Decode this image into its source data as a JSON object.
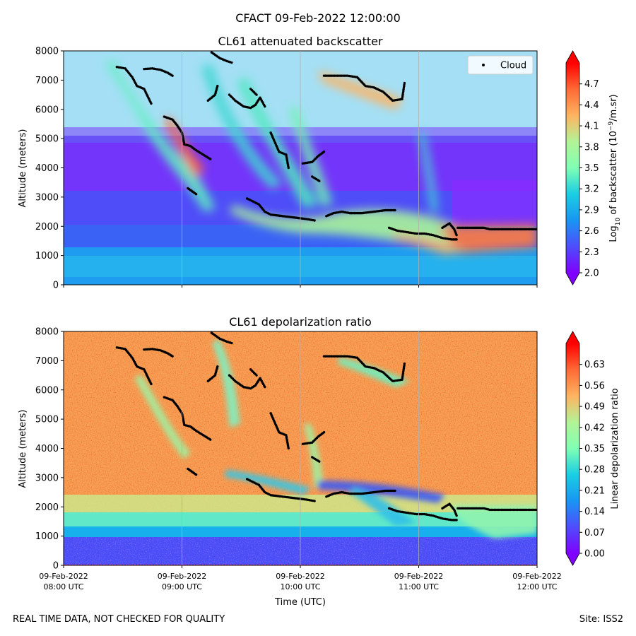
{
  "figure": {
    "suptitle": "CFACT 09-Feb-2022 12:00:00",
    "footer_left": "REAL TIME DATA, NOT CHECKED FOR QUALITY",
    "footer_right": "Site: ISS2",
    "xlabel": "Time (UTC)"
  },
  "chart_data": [
    {
      "type": "heatmap",
      "title": "CL61 attenuated backscatter",
      "ylabel": "Altitude (meters)",
      "ylim": [
        0,
        8000
      ],
      "yticks": [
        0,
        1000,
        2000,
        3000,
        4000,
        5000,
        6000,
        7000,
        8000
      ],
      "xlim": [
        "08:00",
        "12:00"
      ],
      "colorbar": {
        "label_main": "Log",
        "label_sub": "10",
        "label_rest": " of backscatter (10",
        "label_sup": "−9",
        "label_end": "/m.sr)",
        "range": [
          2.0,
          5.0
        ],
        "ticks": [
          2.0,
          2.3,
          2.6,
          2.9,
          3.2,
          3.5,
          3.8,
          4.1,
          4.4,
          4.7
        ],
        "tick_labels": [
          "2.0",
          "2.3",
          "2.6",
          "2.9",
          "3.2",
          "3.5",
          "3.8",
          "4.1",
          "4.4",
          "4.7"
        ],
        "colormap": "rainbow",
        "extend": "both"
      },
      "legend": {
        "label": "Cloud",
        "placement": "top-right"
      },
      "show_xtick_labels": false
    },
    {
      "type": "heatmap",
      "title": "CL61 depolarization ratio",
      "ylabel": "Altitude (meters)",
      "ylim": [
        0,
        8000
      ],
      "yticks": [
        0,
        1000,
        2000,
        3000,
        4000,
        5000,
        6000,
        7000,
        8000
      ],
      "xlim": [
        "08:00",
        "12:00"
      ],
      "colorbar": {
        "label_main": "Linear depolarization ratio",
        "range": [
          0.0,
          0.7
        ],
        "ticks": [
          0.0,
          0.07,
          0.14,
          0.21,
          0.28,
          0.35,
          0.42,
          0.49,
          0.56,
          0.63
        ],
        "tick_labels": [
          "0.00",
          "0.07",
          "0.14",
          "0.21",
          "0.28",
          "0.35",
          "0.42",
          "0.49",
          "0.56",
          "0.63"
        ],
        "colormap": "rainbow",
        "extend": "both"
      },
      "show_xtick_labels": true
    }
  ],
  "x_axis": {
    "ticks": [
      {
        "date": "09-Feb-2022",
        "time": "08:00 UTC",
        "hour": 8
      },
      {
        "date": "09-Feb-2022",
        "time": "09:00 UTC",
        "hour": 9
      },
      {
        "date": "09-Feb-2022",
        "time": "10:00 UTC",
        "hour": 10
      },
      {
        "date": "09-Feb-2022",
        "time": "11:00 UTC",
        "hour": 11
      },
      {
        "date": "09-Feb-2022",
        "time": "12:00 UTC",
        "hour": 12
      }
    ]
  },
  "cloud_base": [
    {
      "segment": "A",
      "points": [
        [
          8.45,
          7450
        ],
        [
          8.52,
          7400
        ],
        [
          8.58,
          7100
        ],
        [
          8.62,
          6800
        ],
        [
          8.68,
          6700
        ],
        [
          8.74,
          6200
        ]
      ]
    },
    {
      "segment": "B",
      "points": [
        [
          8.68,
          7380
        ],
        [
          8.75,
          7400
        ],
        [
          8.82,
          7350
        ],
        [
          8.88,
          7250
        ],
        [
          8.92,
          7150
        ]
      ]
    },
    {
      "segment": "C",
      "points": [
        [
          8.85,
          5750
        ],
        [
          8.92,
          5650
        ],
        [
          8.96,
          5450
        ],
        [
          9.0,
          5200
        ],
        [
          9.02,
          4800
        ],
        [
          9.07,
          4750
        ],
        [
          9.12,
          4600
        ],
        [
          9.2,
          4400
        ],
        [
          9.24,
          4300
        ]
      ]
    },
    {
      "segment": "D",
      "points": [
        [
          9.22,
          6300
        ],
        [
          9.28,
          6500
        ],
        [
          9.3,
          6800
        ]
      ]
    },
    {
      "segment": "E",
      "points": [
        [
          9.25,
          7950
        ],
        [
          9.32,
          7750
        ],
        [
          9.38,
          7650
        ],
        [
          9.42,
          7600
        ]
      ]
    },
    {
      "segment": "F",
      "points": [
        [
          9.4,
          6500
        ],
        [
          9.45,
          6300
        ],
        [
          9.52,
          6100
        ],
        [
          9.58,
          6050
        ],
        [
          9.62,
          6150
        ],
        [
          9.66,
          6400
        ],
        [
          9.7,
          6100
        ]
      ]
    },
    {
      "segment": "G",
      "points": [
        [
          9.58,
          6700
        ],
        [
          9.63,
          6500
        ]
      ]
    },
    {
      "segment": "H",
      "points": [
        [
          9.75,
          5200
        ],
        [
          9.82,
          4550
        ],
        [
          9.88,
          4450
        ],
        [
          9.9,
          4000
        ]
      ]
    },
    {
      "segment": "I",
      "points": [
        [
          9.05,
          3300
        ],
        [
          9.12,
          3100
        ]
      ]
    },
    {
      "segment": "J",
      "points": [
        [
          9.55,
          2950
        ],
        [
          9.6,
          2850
        ],
        [
          9.65,
          2750
        ],
        [
          9.7,
          2500
        ],
        [
          9.75,
          2400
        ],
        [
          9.85,
          2350
        ],
        [
          9.95,
          2300
        ],
        [
          10.05,
          2250
        ],
        [
          10.12,
          2200
        ]
      ]
    },
    {
      "segment": "K",
      "points": [
        [
          10.02,
          4150
        ],
        [
          10.1,
          4200
        ],
        [
          10.15,
          4400
        ],
        [
          10.2,
          4550
        ]
      ]
    },
    {
      "segment": "L",
      "points": [
        [
          10.1,
          3700
        ],
        [
          10.16,
          3550
        ]
      ]
    },
    {
      "segment": "M",
      "points": [
        [
          10.22,
          2350
        ],
        [
          10.28,
          2450
        ],
        [
          10.35,
          2500
        ],
        [
          10.42,
          2450
        ],
        [
          10.52,
          2450
        ],
        [
          10.62,
          2500
        ],
        [
          10.72,
          2550
        ],
        [
          10.8,
          2550
        ]
      ]
    },
    {
      "segment": "N",
      "points": [
        [
          10.2,
          7150
        ],
        [
          10.3,
          7150
        ],
        [
          10.4,
          7150
        ],
        [
          10.48,
          7100
        ],
        [
          10.55,
          6800
        ],
        [
          10.62,
          6750
        ],
        [
          10.7,
          6600
        ],
        [
          10.78,
          6300
        ],
        [
          10.86,
          6350
        ],
        [
          10.88,
          6900
        ]
      ]
    },
    {
      "segment": "O",
      "points": [
        [
          10.75,
          1950
        ],
        [
          10.82,
          1850
        ],
        [
          10.9,
          1800
        ],
        [
          10.98,
          1750
        ],
        [
          11.05,
          1750
        ],
        [
          11.12,
          1700
        ],
        [
          11.2,
          1600
        ],
        [
          11.28,
          1550
        ],
        [
          11.32,
          1550
        ]
      ]
    },
    {
      "segment": "P",
      "points": [
        [
          11.2,
          1950
        ],
        [
          11.26,
          2100
        ],
        [
          11.3,
          1900
        ],
        [
          11.32,
          1700
        ]
      ]
    },
    {
      "segment": "Q",
      "points": [
        [
          11.33,
          1950
        ],
        [
          11.45,
          1950
        ],
        [
          11.55,
          1950
        ],
        [
          11.6,
          1900
        ],
        [
          11.7,
          1900
        ],
        [
          11.8,
          1900
        ],
        [
          11.9,
          1900
        ],
        [
          12.0,
          1900
        ]
      ]
    }
  ]
}
